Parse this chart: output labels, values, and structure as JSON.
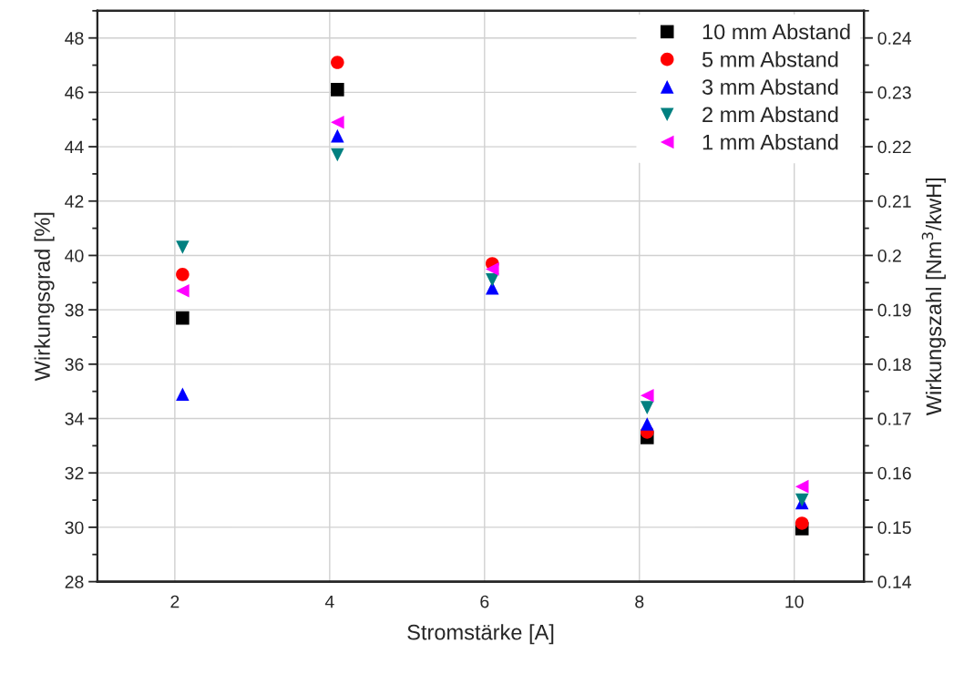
{
  "chart_data": {
    "type": "scatter",
    "xlabel": "Stromstärke [A]",
    "ylabel": "Wirkungsgrad [%]",
    "y2label": "Wirkungszahl [Nm$^{3}$/kwH]",
    "x": [
      2.1,
      4.1,
      6.1,
      8.1,
      10.1
    ],
    "series": [
      {
        "name": "10 mm Abstand",
        "color": "#000000",
        "marker": "square",
        "values": [
          37.7,
          46.1,
          null,
          33.3,
          29.95
        ]
      },
      {
        "name": "5 mm Abstand",
        "color": "#ff0000",
        "marker": "circle",
        "values": [
          39.3,
          47.1,
          39.7,
          33.5,
          30.15
        ]
      },
      {
        "name": "3 mm Abstand",
        "color": "#0000ff",
        "marker": "triangle",
        "values": [
          34.9,
          44.4,
          38.8,
          33.8,
          30.9
        ]
      },
      {
        "name": "2 mm Abstand",
        "color": "#008080",
        "marker": "triangle_down",
        "values": [
          40.3,
          43.7,
          39.1,
          34.4,
          31.0
        ]
      },
      {
        "name": "1 mm Abstand",
        "color": "#ff00ff",
        "marker": "triangle_left",
        "values": [
          38.7,
          44.9,
          39.5,
          34.85,
          31.5
        ]
      }
    ],
    "xlim": [
      1,
      10.9
    ],
    "xticks": [
      2,
      4,
      6,
      8,
      10
    ],
    "ylim": [
      28,
      49
    ],
    "yticks": [
      28,
      30,
      32,
      34,
      36,
      38,
      40,
      42,
      44,
      46,
      48
    ],
    "y2lim": [
      0.14,
      0.245
    ],
    "y2ticks": [
      0.14,
      0.15,
      0.16,
      0.17,
      0.18,
      0.19,
      0.2,
      0.21,
      0.22,
      0.23,
      0.24
    ],
    "grid": true,
    "legend": "top right"
  }
}
